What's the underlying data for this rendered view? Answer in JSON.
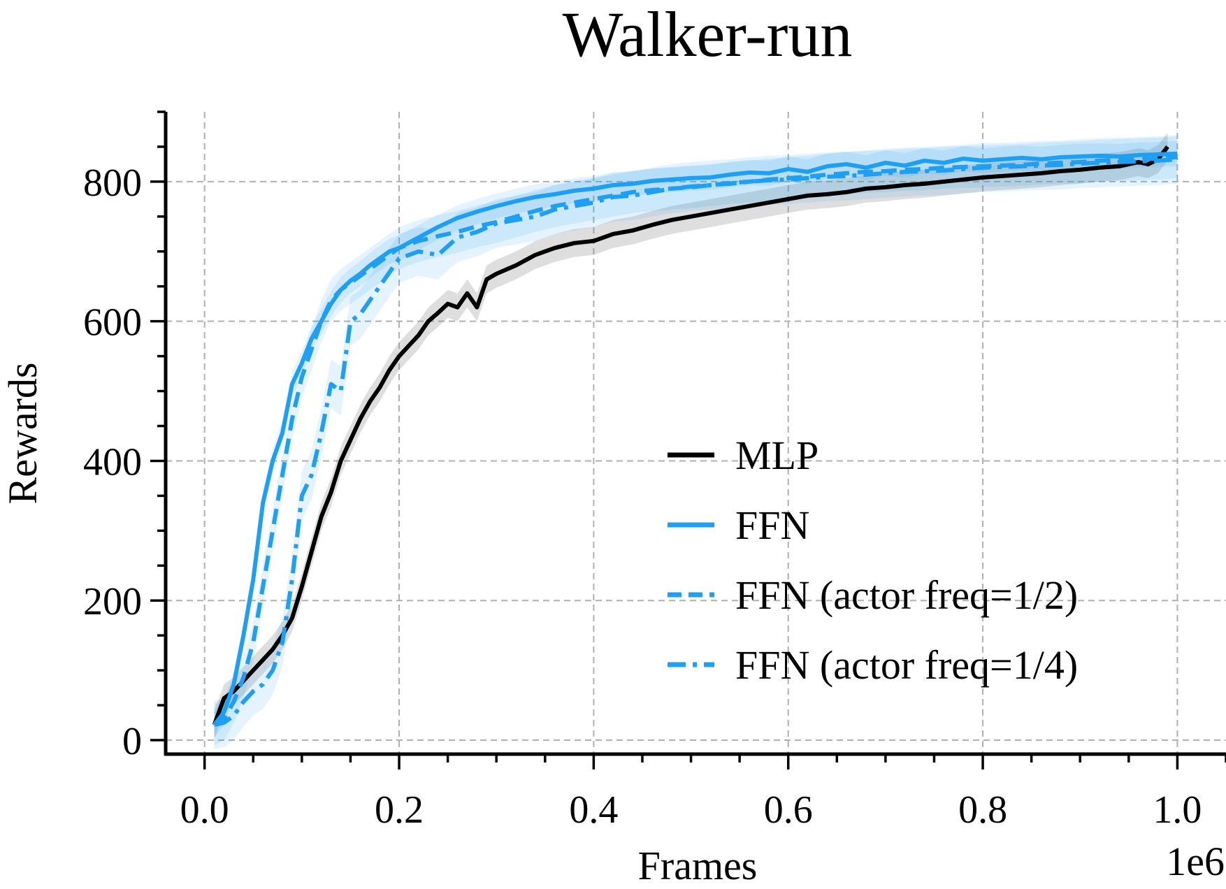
{
  "chart_data": {
    "type": "line",
    "title": "Walker-run",
    "xlabel": "Frames",
    "ylabel": "Rewards",
    "x_offset_label": "1e6",
    "xlim": [
      -0.04,
      1.05
    ],
    "ylim": [
      -20,
      900
    ],
    "xticks": [
      0.0,
      0.2,
      0.4,
      0.6,
      0.8,
      1.0
    ],
    "xtick_labels": [
      "0.0",
      "0.2",
      "0.4",
      "0.6",
      "0.8",
      "1.0"
    ],
    "yticks": [
      0,
      200,
      400,
      600,
      800
    ],
    "ytick_labels": [
      "0",
      "200",
      "400",
      "600",
      "800"
    ],
    "x_minor_step": 0.05,
    "y_minor_step": 50,
    "grid": true,
    "legend_position": "lower-right",
    "series": [
      {
        "name": "MLP",
        "color": "#000000",
        "style": "solid",
        "band": 20,
        "x": [
          0.01,
          0.02,
          0.03,
          0.04,
          0.05,
          0.06,
          0.07,
          0.08,
          0.09,
          0.1,
          0.11,
          0.12,
          0.13,
          0.14,
          0.15,
          0.16,
          0.17,
          0.18,
          0.19,
          0.2,
          0.21,
          0.22,
          0.23,
          0.24,
          0.25,
          0.26,
          0.27,
          0.28,
          0.29,
          0.3,
          0.32,
          0.34,
          0.36,
          0.38,
          0.4,
          0.42,
          0.44,
          0.46,
          0.48,
          0.5,
          0.52,
          0.54,
          0.56,
          0.58,
          0.6,
          0.62,
          0.64,
          0.66,
          0.68,
          0.7,
          0.72,
          0.74,
          0.76,
          0.78,
          0.8,
          0.82,
          0.84,
          0.86,
          0.88,
          0.9,
          0.92,
          0.94,
          0.96,
          0.97,
          0.98,
          0.99
        ],
        "y": [
          22,
          60,
          70,
          85,
          100,
          115,
          130,
          150,
          175,
          220,
          270,
          320,
          355,
          400,
          430,
          460,
          485,
          505,
          530,
          550,
          565,
          580,
          600,
          612,
          625,
          620,
          640,
          620,
          660,
          668,
          680,
          695,
          705,
          712,
          715,
          725,
          730,
          738,
          745,
          750,
          755,
          760,
          765,
          770,
          775,
          780,
          782,
          785,
          790,
          792,
          795,
          797,
          800,
          803,
          806,
          808,
          810,
          812,
          815,
          817,
          820,
          822,
          828,
          825,
          832,
          850
        ]
      },
      {
        "name": "FFN",
        "color": "#1e9ff2",
        "style": "solid",
        "band": 18,
        "x": [
          0.01,
          0.02,
          0.03,
          0.04,
          0.05,
          0.06,
          0.07,
          0.08,
          0.09,
          0.1,
          0.11,
          0.12,
          0.13,
          0.14,
          0.15,
          0.16,
          0.17,
          0.18,
          0.19,
          0.2,
          0.22,
          0.24,
          0.26,
          0.28,
          0.3,
          0.32,
          0.34,
          0.36,
          0.38,
          0.4,
          0.42,
          0.44,
          0.46,
          0.48,
          0.5,
          0.52,
          0.54,
          0.56,
          0.58,
          0.6,
          0.62,
          0.64,
          0.66,
          0.68,
          0.7,
          0.72,
          0.74,
          0.76,
          0.78,
          0.8,
          0.82,
          0.84,
          0.86,
          0.88,
          0.9,
          0.92,
          0.94,
          0.96,
          0.98,
          1.0
        ],
        "y": [
          22,
          40,
          80,
          150,
          230,
          340,
          400,
          440,
          510,
          540,
          575,
          600,
          625,
          645,
          658,
          668,
          680,
          690,
          700,
          705,
          720,
          735,
          748,
          757,
          765,
          772,
          778,
          782,
          787,
          790,
          795,
          797,
          801,
          803,
          805,
          806,
          810,
          813,
          812,
          818,
          814,
          822,
          825,
          820,
          827,
          823,
          830,
          827,
          833,
          830,
          832,
          834,
          832,
          835,
          836,
          837,
          836,
          838,
          839,
          840
        ]
      },
      {
        "name": "FFN (actor freq=1/2)",
        "color": "#1e9ff2",
        "style": "dash",
        "band": 30,
        "x": [
          0.01,
          0.02,
          0.03,
          0.04,
          0.05,
          0.06,
          0.07,
          0.08,
          0.09,
          0.1,
          0.11,
          0.12,
          0.13,
          0.14,
          0.15,
          0.16,
          0.17,
          0.18,
          0.19,
          0.2,
          0.22,
          0.24,
          0.26,
          0.28,
          0.3,
          0.32,
          0.34,
          0.36,
          0.38,
          0.4,
          0.42,
          0.44,
          0.46,
          0.48,
          0.5,
          0.52,
          0.54,
          0.56,
          0.58,
          0.6,
          0.62,
          0.64,
          0.66,
          0.68,
          0.7,
          0.72,
          0.74,
          0.76,
          0.78,
          0.8,
          0.82,
          0.84,
          0.86,
          0.88,
          0.9,
          0.92,
          0.94,
          0.96,
          0.98,
          1.0
        ],
        "y": [
          22,
          30,
          55,
          90,
          140,
          220,
          300,
          380,
          460,
          520,
          560,
          600,
          630,
          645,
          655,
          665,
          675,
          685,
          695,
          705,
          715,
          722,
          728,
          736,
          742,
          750,
          758,
          765,
          770,
          775,
          780,
          785,
          788,
          790,
          792,
          795,
          798,
          800,
          803,
          805,
          807,
          810,
          812,
          814,
          815,
          817,
          818,
          820,
          821,
          822,
          823,
          824,
          826,
          827,
          828,
          830,
          831,
          832,
          833,
          835
        ]
      },
      {
        "name": "FFN (actor freq=1/4)",
        "color": "#1e9ff2",
        "style": "dashdot",
        "band": 35,
        "x": [
          0.01,
          0.02,
          0.03,
          0.04,
          0.05,
          0.06,
          0.07,
          0.08,
          0.09,
          0.1,
          0.11,
          0.12,
          0.13,
          0.14,
          0.15,
          0.16,
          0.17,
          0.18,
          0.19,
          0.2,
          0.22,
          0.24,
          0.26,
          0.28,
          0.3,
          0.32,
          0.34,
          0.36,
          0.38,
          0.4,
          0.42,
          0.44,
          0.46,
          0.48,
          0.5,
          0.52,
          0.54,
          0.56,
          0.58,
          0.6,
          0.62,
          0.64,
          0.66,
          0.68,
          0.7,
          0.72,
          0.74,
          0.76,
          0.78,
          0.8,
          0.82,
          0.84,
          0.86,
          0.88,
          0.9,
          0.92,
          0.94,
          0.96,
          0.98,
          1.0
        ],
        "y": [
          22,
          25,
          35,
          55,
          70,
          80,
          100,
          140,
          230,
          350,
          380,
          440,
          510,
          500,
          600,
          610,
          630,
          650,
          670,
          690,
          700,
          695,
          720,
          728,
          740,
          745,
          750,
          760,
          765,
          770,
          778,
          780,
          785,
          790,
          793,
          795,
          797,
          800,
          802,
          803,
          805,
          807,
          808,
          810,
          812,
          814,
          815,
          816,
          818,
          820,
          821,
          822,
          823,
          824,
          826,
          827,
          828,
          829,
          830,
          832
        ]
      }
    ]
  }
}
